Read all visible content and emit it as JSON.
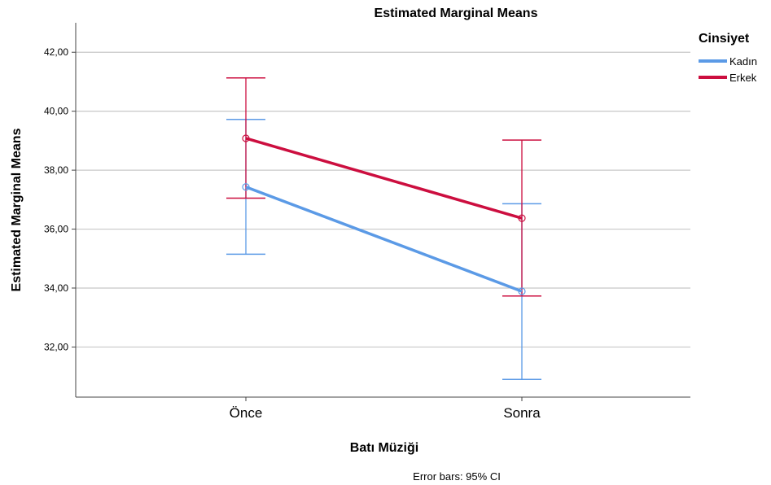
{
  "chart_data": {
    "type": "line",
    "title": "Estimated Marginal Means",
    "xlabel": "Batı Müziği",
    "ylabel": "Estimated Marginal Means",
    "categories": [
      "Önce",
      "Sonra"
    ],
    "ylim": [
      30.3,
      43.0
    ],
    "yticks": [
      32,
      34,
      36,
      38,
      40,
      42
    ],
    "ytick_labels": [
      "32,00",
      "34,00",
      "36,00",
      "38,00",
      "40,00",
      "42,00"
    ],
    "grid": true,
    "legend": {
      "title": "Cinsiyet",
      "placement": "right"
    },
    "footnote": "Error bars: 95% CI",
    "series": [
      {
        "name": "Kadın",
        "color": "#5b9ae6",
        "values": [
          37.43,
          33.89
        ],
        "ci_low": [
          35.15,
          30.9
        ],
        "ci_high": [
          39.72,
          36.86
        ]
      },
      {
        "name": "Erkek",
        "color": "#cc0e3f",
        "values": [
          39.08,
          36.37
        ],
        "ci_low": [
          37.05,
          33.73
        ],
        "ci_high": [
          41.13,
          39.02
        ]
      }
    ]
  }
}
